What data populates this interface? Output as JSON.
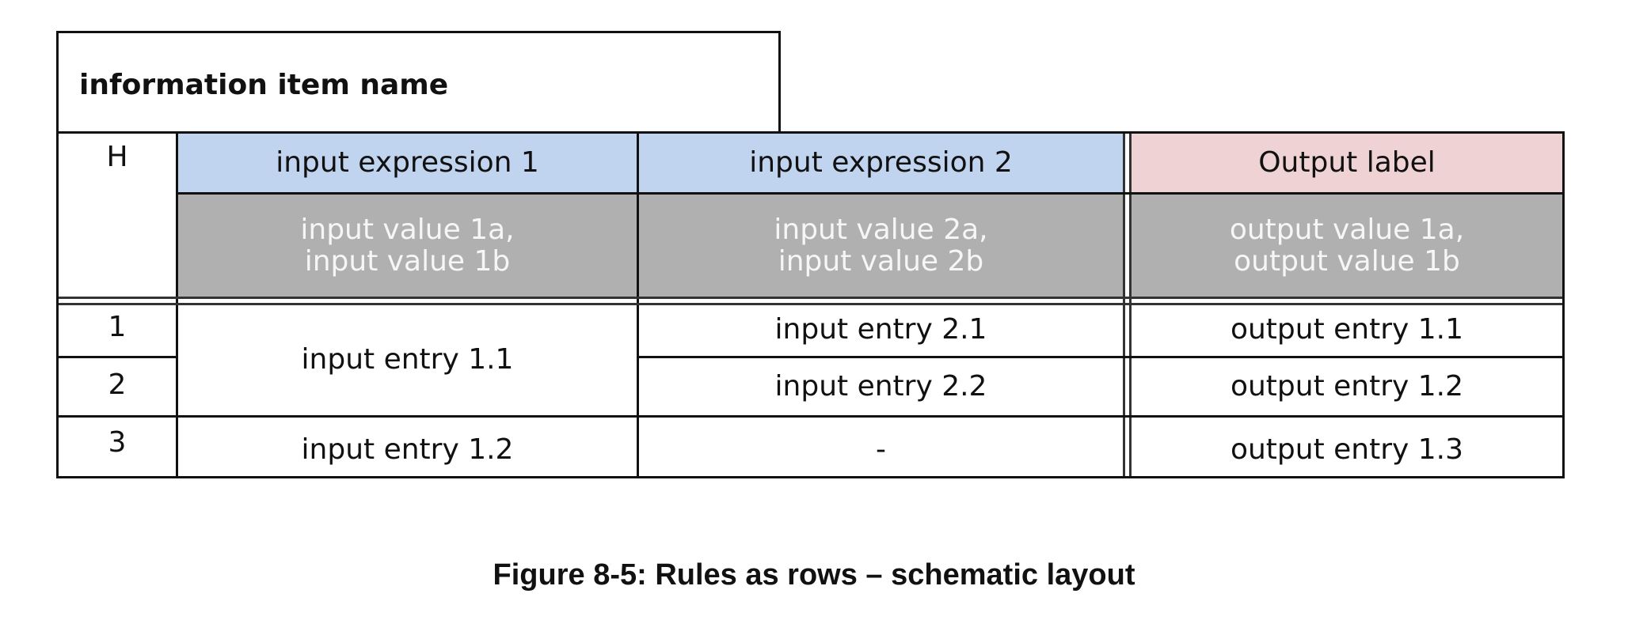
{
  "table": {
    "name": "information item name",
    "hit_policy": "H",
    "inputs": [
      {
        "label": "input expression 1",
        "values": [
          "input value 1a,",
          "input value 1b"
        ]
      },
      {
        "label": "input expression 2",
        "values": [
          "input value 2a,",
          "input value 2b"
        ]
      }
    ],
    "output": {
      "label": "Output label",
      "values": [
        "output value 1a,",
        "output value 1b"
      ]
    },
    "rules": [
      {
        "num": "1",
        "in1": "input entry 1.1",
        "in2": "input entry 2.1",
        "out": "output entry 1.1"
      },
      {
        "num": "2",
        "in1": "",
        "in2": "input entry 2.2",
        "out": "output entry 1.2"
      },
      {
        "num": "3",
        "in1": "input entry 1.2",
        "in2": "-",
        "out": "output entry 1.3"
      }
    ],
    "colors": {
      "input_header": "#c0d3ef",
      "output_header": "#efd2d4",
      "value_row": "#b0b0b0"
    }
  },
  "caption": "Figure 8-5: Rules as rows – schematic layout"
}
